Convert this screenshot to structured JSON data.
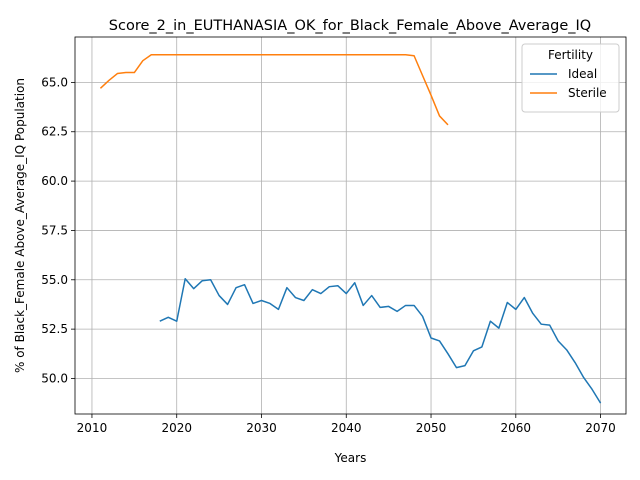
{
  "chart_data": {
    "type": "line",
    "title": "Score_2_in_EUTHANASIA_OK_for_Black_Female_Above_Average_IQ",
    "xlabel": "Years",
    "ylabel": "% of Black_Female Above_Average_IQ Population",
    "xlim": [
      2008,
      2073
    ],
    "ylim": [
      48.2,
      67.3
    ],
    "xticks": [
      "2010",
      "2020",
      "2030",
      "2040",
      "2050",
      "2060",
      "2070"
    ],
    "xtick_values": [
      2010,
      2020,
      2030,
      2040,
      2050,
      2060,
      2070
    ],
    "yticks": [
      "50.0",
      "52.5",
      "55.0",
      "57.5",
      "60.0",
      "62.5",
      "65.0"
    ],
    "ytick_values": [
      50.0,
      52.5,
      55.0,
      57.5,
      60.0,
      62.5,
      65.0
    ],
    "grid": true,
    "legend": {
      "title": "Fertility",
      "placement": "top-right"
    },
    "series": [
      {
        "name": "Ideal",
        "color": "#1f77b4",
        "x": [
          2018,
          2019,
          2020,
          2021,
          2022,
          2023,
          2024,
          2025,
          2026,
          2027,
          2028,
          2029,
          2030,
          2031,
          2032,
          2033,
          2034,
          2035,
          2036,
          2037,
          2038,
          2039,
          2040,
          2041,
          2042,
          2043,
          2044,
          2045,
          2046,
          2047,
          2048,
          2049,
          2050,
          2051,
          2052,
          2053,
          2054,
          2055,
          2056,
          2057,
          2058,
          2059,
          2060,
          2061,
          2062,
          2063,
          2064,
          2065,
          2066,
          2067,
          2068,
          2069,
          2070
        ],
        "y": [
          52.9,
          53.1,
          52.9,
          55.05,
          54.55,
          54.95,
          55.0,
          54.2,
          53.75,
          54.6,
          54.75,
          53.8,
          53.95,
          53.8,
          53.5,
          54.6,
          54.1,
          53.95,
          54.5,
          54.3,
          54.65,
          54.7,
          54.3,
          54.85,
          53.7,
          54.2,
          53.6,
          53.65,
          53.4,
          53.7,
          53.7,
          53.15,
          52.05,
          51.9,
          51.25,
          50.55,
          50.65,
          51.4,
          51.6,
          52.9,
          52.55,
          53.85,
          53.5,
          54.1,
          53.3,
          52.75,
          52.7,
          51.9,
          51.45,
          50.8,
          50.05,
          49.45,
          48.75
        ]
      },
      {
        "name": "Sterile",
        "color": "#ff7f0e",
        "x": [
          2011,
          2012,
          2013,
          2014,
          2015,
          2016,
          2017,
          2018,
          2019,
          2020,
          2021,
          2022,
          2023,
          2024,
          2025,
          2026,
          2027,
          2028,
          2029,
          2030,
          2031,
          2032,
          2033,
          2034,
          2035,
          2036,
          2037,
          2038,
          2039,
          2040,
          2041,
          2042,
          2043,
          2044,
          2045,
          2046,
          2047,
          2048,
          2049,
          2050,
          2051,
          2052
        ],
        "y": [
          64.7,
          65.1,
          65.45,
          65.5,
          65.5,
          66.1,
          66.4,
          66.4,
          66.4,
          66.4,
          66.4,
          66.4,
          66.4,
          66.4,
          66.4,
          66.4,
          66.4,
          66.4,
          66.4,
          66.4,
          66.4,
          66.4,
          66.4,
          66.4,
          66.4,
          66.4,
          66.4,
          66.4,
          66.4,
          66.4,
          66.4,
          66.4,
          66.4,
          66.4,
          66.4,
          66.4,
          66.4,
          66.35,
          65.35,
          64.35,
          63.3,
          62.85
        ]
      }
    ]
  }
}
